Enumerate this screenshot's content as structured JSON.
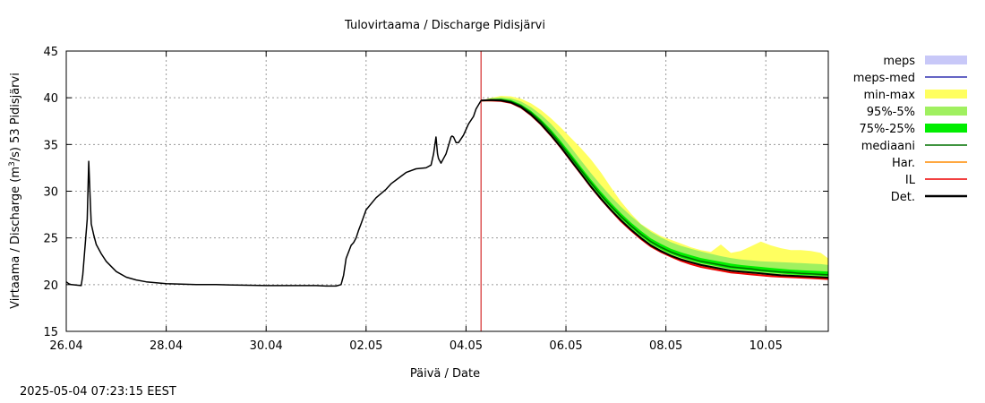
{
  "chart_data": {
    "type": "line",
    "title": "Tulovirtaama / Discharge  Pidisjärvi",
    "xlabel": "Päivä / Date",
    "ylabel_prefix": "Virtaama / Discharge (m",
    "ylabel_sup": "3",
    "ylabel_suffix": "/s)  53 Pidisjärvi",
    "x_unit": "days since 26.04",
    "xlim": [
      0,
      15.25
    ],
    "ylim": [
      15,
      45
    ],
    "yticks": [
      15,
      20,
      25,
      30,
      35,
      40,
      45
    ],
    "xticks": [
      {
        "x": 0,
        "label": "26.04"
      },
      {
        "x": 2,
        "label": "28.04"
      },
      {
        "x": 4,
        "label": "30.04"
      },
      {
        "x": 6,
        "label": "02.05"
      },
      {
        "x": 8,
        "label": "04.05"
      },
      {
        "x": 10,
        "label": "06.05"
      },
      {
        "x": 12,
        "label": "08.05"
      },
      {
        "x": 14,
        "label": "10.05"
      }
    ],
    "grid": true,
    "forecast_start": 8.3,
    "colors": {
      "meps": "#c8c8f8",
      "meps_med": "#3030b0",
      "minmax": "#ffff60",
      "p95_5": "#a0f060",
      "p75_25": "#00ee00",
      "mediaani": "#007000",
      "har": "#ff8c00",
      "il": "#ee0000",
      "det": "#000000",
      "now_line": "#cc0000",
      "grid": "#9a9a9a"
    },
    "legend": [
      {
        "key": "meps",
        "label": "meps",
        "style": "fill"
      },
      {
        "key": "meps_med",
        "label": "meps-med",
        "style": "line"
      },
      {
        "key": "minmax",
        "label": "min-max",
        "style": "fill"
      },
      {
        "key": "p95_5",
        "label": "95%-5%",
        "style": "fill"
      },
      {
        "key": "p75_25",
        "label": "75%-25%",
        "style": "fill"
      },
      {
        "key": "mediaani",
        "label": "mediaani",
        "style": "line"
      },
      {
        "key": "har",
        "label": "Har.",
        "style": "line"
      },
      {
        "key": "il",
        "label": "IL",
        "style": "line"
      },
      {
        "key": "det",
        "label": "Det.",
        "style": "thickline"
      }
    ],
    "observed": {
      "x": [
        0,
        0.05,
        0.1,
        0.3,
        0.33,
        0.42,
        0.45,
        0.48,
        0.5,
        0.55,
        0.6,
        0.7,
        0.8,
        1.0,
        1.2,
        1.4,
        1.6,
        1.8,
        2.0,
        2.3,
        2.6,
        3.0,
        3.5,
        4.0,
        4.5,
        5.0,
        5.2,
        5.4,
        5.5,
        5.55,
        5.6,
        5.7,
        5.75,
        5.8,
        5.85,
        5.9,
        6.0,
        6.2,
        6.4,
        6.5,
        6.6,
        6.8,
        7.0,
        7.2,
        7.3,
        7.35,
        7.4,
        7.43,
        7.45,
        7.5,
        7.6,
        7.7,
        7.72,
        7.75,
        7.8,
        7.85,
        7.95,
        8.05,
        8.15,
        8.2,
        8.3
      ],
      "y": [
        20.3,
        20.1,
        20.0,
        19.9,
        21.0,
        27.0,
        33.2,
        29.0,
        26.5,
        25.3,
        24.3,
        23.3,
        22.5,
        21.4,
        20.8,
        20.5,
        20.3,
        20.2,
        20.1,
        20.05,
        20.0,
        20.0,
        19.95,
        19.9,
        19.9,
        19.9,
        19.85,
        19.85,
        20.0,
        21.0,
        22.8,
        24.2,
        24.5,
        25.0,
        25.8,
        26.5,
        28.0,
        29.3,
        30.2,
        30.8,
        31.2,
        32.0,
        32.4,
        32.5,
        32.8,
        34.0,
        35.8,
        34.0,
        33.5,
        33.0,
        34.0,
        35.8,
        35.9,
        35.8,
        35.2,
        35.2,
        36.0,
        37.2,
        38.0,
        38.8,
        39.7
      ]
    },
    "forecast": {
      "x": [
        8.3,
        8.5,
        8.7,
        8.9,
        9.1,
        9.3,
        9.5,
        9.7,
        9.9,
        10.1,
        10.3,
        10.5,
        10.7,
        10.9,
        11.1,
        11.3,
        11.5,
        11.7,
        11.9,
        12.1,
        12.3,
        12.5,
        12.7,
        12.9,
        13.1,
        13.3,
        13.5,
        13.7,
        13.9,
        14.1,
        14.3,
        14.5,
        14.7,
        14.9,
        15.1,
        15.25
      ],
      "det": [
        39.7,
        39.75,
        39.7,
        39.5,
        39.0,
        38.2,
        37.2,
        36.0,
        34.7,
        33.3,
        31.9,
        30.5,
        29.2,
        28.0,
        26.9,
        25.9,
        25.0,
        24.2,
        23.6,
        23.1,
        22.7,
        22.4,
        22.1,
        21.9,
        21.7,
        21.5,
        21.4,
        21.3,
        21.2,
        21.1,
        21.0,
        20.95,
        20.9,
        20.85,
        20.8,
        20.75
      ],
      "il": [
        39.7,
        39.7,
        39.65,
        39.45,
        38.95,
        38.15,
        37.15,
        35.95,
        34.65,
        33.25,
        31.85,
        30.45,
        29.15,
        27.95,
        26.8,
        25.8,
        24.9,
        24.1,
        23.5,
        23.0,
        22.55,
        22.2,
        21.9,
        21.7,
        21.5,
        21.3,
        21.2,
        21.1,
        21.0,
        20.9,
        20.85,
        20.8,
        20.75,
        20.7,
        20.65,
        20.6
      ],
      "mediaani": [
        39.7,
        39.8,
        39.8,
        39.6,
        39.15,
        38.4,
        37.45,
        36.3,
        35.0,
        33.65,
        32.25,
        30.9,
        29.6,
        28.4,
        27.3,
        26.3,
        25.4,
        24.6,
        24.0,
        23.5,
        23.1,
        22.8,
        22.5,
        22.3,
        22.1,
        21.9,
        21.8,
        21.7,
        21.55,
        21.45,
        21.35,
        21.3,
        21.2,
        21.15,
        21.1,
        21.05
      ],
      "p75_low": [
        39.7,
        39.75,
        39.75,
        39.55,
        39.05,
        38.3,
        37.3,
        36.15,
        34.85,
        33.45,
        32.05,
        30.7,
        29.4,
        28.2,
        27.1,
        26.1,
        25.2,
        24.4,
        23.8,
        23.3,
        22.9,
        22.6,
        22.3,
        22.1,
        21.9,
        21.7,
        21.6,
        21.5,
        21.4,
        21.3,
        21.2,
        21.1,
        21.05,
        21.0,
        20.95,
        20.9
      ],
      "p75_high": [
        39.7,
        39.85,
        39.9,
        39.75,
        39.3,
        38.6,
        37.7,
        36.6,
        35.35,
        34.0,
        32.6,
        31.25,
        29.95,
        28.75,
        27.65,
        26.65,
        25.75,
        24.95,
        24.35,
        23.85,
        23.45,
        23.15,
        22.85,
        22.65,
        22.45,
        22.25,
        22.1,
        22.0,
        21.9,
        21.8,
        21.7,
        21.6,
        21.55,
        21.5,
        21.45,
        21.4
      ],
      "p95_low": [
        39.7,
        39.7,
        39.7,
        39.5,
        39.0,
        38.2,
        37.2,
        36.05,
        34.75,
        33.35,
        31.95,
        30.55,
        29.25,
        28.05,
        26.95,
        25.95,
        25.05,
        24.25,
        23.65,
        23.15,
        22.75,
        22.45,
        22.15,
        21.95,
        21.75,
        21.55,
        21.45,
        21.35,
        21.25,
        21.15,
        21.05,
        21.0,
        20.95,
        20.9,
        20.85,
        20.8
      ],
      "p95_high": [
        39.7,
        39.95,
        40.05,
        39.95,
        39.6,
        39.0,
        38.2,
        37.2,
        36.0,
        34.7,
        33.3,
        31.95,
        30.65,
        29.45,
        28.35,
        27.35,
        26.45,
        25.65,
        25.05,
        24.55,
        24.15,
        23.85,
        23.55,
        23.3,
        23.05,
        22.85,
        22.7,
        22.6,
        22.5,
        22.45,
        22.4,
        22.35,
        22.3,
        22.25,
        22.2,
        22.1
      ],
      "min": [
        39.6,
        39.6,
        39.6,
        39.4,
        38.9,
        38.1,
        37.1,
        35.95,
        34.65,
        33.25,
        31.85,
        30.45,
        29.15,
        27.95,
        26.85,
        25.85,
        24.95,
        24.15,
        23.55,
        23.05,
        22.65,
        22.3,
        22.0,
        21.75,
        21.55,
        21.35,
        21.2,
        21.1,
        21.0,
        20.9,
        20.8,
        20.75,
        20.7,
        20.65,
        20.6,
        20.55
      ],
      "max": [
        39.7,
        40.0,
        40.2,
        40.15,
        39.9,
        39.4,
        38.7,
        37.8,
        36.8,
        35.7,
        34.6,
        33.4,
        32.0,
        30.4,
        28.9,
        27.6,
        26.5,
        25.8,
        25.2,
        24.8,
        24.4,
        24.0,
        23.7,
        23.5,
        24.3,
        23.4,
        23.6,
        24.1,
        24.6,
        24.2,
        23.9,
        23.7,
        23.7,
        23.6,
        23.4,
        22.8
      ]
    }
  },
  "footer": {
    "timestamp": "2025-05-04  07:23:15 EEST"
  }
}
